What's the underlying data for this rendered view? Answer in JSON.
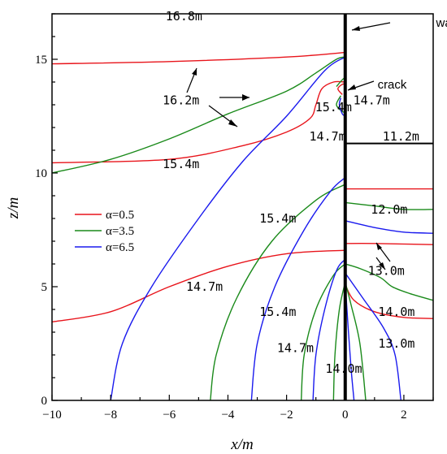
{
  "chart_data": {
    "type": "line",
    "title": "",
    "xlabel": "x/m",
    "ylabel": "z/m",
    "xlim": [
      -10,
      3
    ],
    "ylim": [
      0,
      17
    ],
    "x_ticks": [
      -10,
      -8,
      -6,
      -4,
      -2,
      0,
      2
    ],
    "y_ticks": [
      0,
      5,
      10,
      15
    ],
    "grid": false,
    "legend_position": "middle-left",
    "series": [
      {
        "name": "α=0.5",
        "color": "#e8141b"
      },
      {
        "name": "α=3.5",
        "color": "#1a8a1a"
      },
      {
        "name": "α=6.5",
        "color": "#1a1aee"
      }
    ],
    "contours": [
      {
        "series": 0,
        "points": [
          [
            -10,
            14.8
          ],
          [
            -6,
            14.9
          ],
          [
            -2,
            15.1
          ],
          [
            0,
            15.3
          ]
        ]
      },
      {
        "series": 0,
        "points": [
          [
            -10,
            10.45
          ],
          [
            -6,
            10.6
          ],
          [
            -3.5,
            11.2
          ],
          [
            -2,
            11.8
          ],
          [
            -1.2,
            12.4
          ],
          [
            -1.0,
            13.0
          ],
          [
            -0.8,
            13.7
          ],
          [
            -0.4,
            14.0
          ],
          [
            0,
            14.0
          ]
        ]
      },
      {
        "series": 0,
        "points": [
          [
            -0.1,
            13.45
          ],
          [
            -0.25,
            13.7
          ],
          [
            -0.1,
            13.9
          ],
          [
            0,
            13.9
          ]
        ]
      },
      {
        "series": 0,
        "points": [
          [
            -10,
            3.45
          ],
          [
            -8,
            3.9
          ],
          [
            -6,
            5.0
          ],
          [
            -4,
            5.9
          ],
          [
            -2,
            6.45
          ],
          [
            0,
            6.6
          ]
        ]
      },
      {
        "series": 0,
        "points": [
          [
            0,
            9.3
          ],
          [
            1,
            9.3
          ],
          [
            3,
            9.3
          ]
        ]
      },
      {
        "series": 0,
        "points": [
          [
            0,
            6.9
          ],
          [
            1,
            6.9
          ],
          [
            3,
            6.85
          ]
        ]
      },
      {
        "series": 0,
        "points": [
          [
            0,
            5.1
          ],
          [
            0.3,
            4.4
          ],
          [
            1,
            3.9
          ],
          [
            2,
            3.65
          ],
          [
            3,
            3.6
          ]
        ]
      },
      {
        "series": 1,
        "points": [
          [
            -10,
            10.0
          ],
          [
            -8,
            10.6
          ],
          [
            -6,
            11.5
          ],
          [
            -4,
            12.6
          ],
          [
            -2,
            13.6
          ],
          [
            -1,
            14.4
          ],
          [
            -0.3,
            15.0
          ],
          [
            0,
            15.1
          ]
        ]
      },
      {
        "series": 1,
        "points": [
          [
            -0.3,
            13.8
          ],
          [
            -0.1,
            14.1
          ],
          [
            0,
            14.2
          ]
        ]
      },
      {
        "series": 1,
        "points": [
          [
            -0.15,
            13.4
          ],
          [
            -0.3,
            13.0
          ],
          [
            -0.1,
            12.7
          ],
          [
            0,
            12.7
          ]
        ]
      },
      {
        "series": 1,
        "points": [
          [
            -4.6,
            0
          ],
          [
            -4.4,
            2
          ],
          [
            -3.7,
            4.5
          ],
          [
            -2.5,
            7
          ],
          [
            -1,
            8.8
          ],
          [
            0,
            9.5
          ]
        ]
      },
      {
        "series": 1,
        "points": [
          [
            -1.5,
            0
          ],
          [
            -1.4,
            2
          ],
          [
            -1,
            4
          ],
          [
            -0.4,
            5.5
          ],
          [
            0,
            6
          ]
        ]
      },
      {
        "series": 1,
        "points": [
          [
            -0.4,
            0
          ],
          [
            -0.35,
            2
          ],
          [
            -0.2,
            4
          ],
          [
            0,
            5.2
          ]
        ]
      },
      {
        "series": 1,
        "points": [
          [
            0,
            8.7
          ],
          [
            1,
            8.55
          ],
          [
            2,
            8.4
          ],
          [
            3,
            8.4
          ]
        ]
      },
      {
        "series": 1,
        "points": [
          [
            0,
            6.0
          ],
          [
            0.5,
            5.8
          ],
          [
            1.2,
            5.4
          ],
          [
            1.6,
            5.0
          ],
          [
            2.2,
            4.7
          ],
          [
            3,
            4.4
          ]
        ]
      },
      {
        "series": 1,
        "points": [
          [
            0,
            5.2
          ],
          [
            0.2,
            4.2
          ],
          [
            0.5,
            2.5
          ],
          [
            0.7,
            0
          ]
        ]
      },
      {
        "series": 2,
        "points": [
          [
            -8,
            0
          ],
          [
            -7.6,
            2.5
          ],
          [
            -6.6,
            5
          ],
          [
            -5,
            8
          ],
          [
            -3.5,
            10.5
          ],
          [
            -2,
            12.5
          ],
          [
            -0.7,
            14.5
          ],
          [
            0,
            15.1
          ]
        ]
      },
      {
        "series": 2,
        "points": [
          [
            -0.15,
            13.3
          ],
          [
            -0.2,
            13.0
          ],
          [
            -0.1,
            12.6
          ],
          [
            0,
            12.5
          ]
        ]
      },
      {
        "series": 2,
        "points": [
          [
            -3.2,
            0
          ],
          [
            -3,
            2.5
          ],
          [
            -2.4,
            5
          ],
          [
            -1.4,
            7.5
          ],
          [
            -0.5,
            9.2
          ],
          [
            0,
            9.8
          ]
        ]
      },
      {
        "series": 2,
        "points": [
          [
            -1.1,
            0
          ],
          [
            -1,
            2
          ],
          [
            -0.7,
            4
          ],
          [
            -0.3,
            5.7
          ],
          [
            0,
            6.2
          ]
        ]
      },
      {
        "series": 2,
        "points": [
          [
            0,
            7.9
          ],
          [
            1,
            7.6
          ],
          [
            2,
            7.4
          ],
          [
            3,
            7.35
          ]
        ]
      },
      {
        "series": 2,
        "points": [
          [
            0,
            5.6
          ],
          [
            0.6,
            4.5
          ],
          [
            1.3,
            3.2
          ],
          [
            1.7,
            2
          ],
          [
            1.9,
            0
          ]
        ]
      },
      {
        "series": 2,
        "points": [
          [
            0,
            5.2
          ],
          [
            0.1,
            3.2
          ],
          [
            0.2,
            1.4
          ],
          [
            0.3,
            0
          ]
        ]
      }
    ],
    "wall_lines": [
      {
        "points": [
          [
            0,
            0
          ],
          [
            0,
            17
          ]
        ]
      },
      {
        "points": [
          [
            0,
            11.3
          ],
          [
            3,
            11.3
          ]
        ]
      }
    ],
    "contour_labels": [
      {
        "text": "16.8m",
        "x": -5.5,
        "y": 16.9
      },
      {
        "text": "16.2m",
        "x": -5.6,
        "y": 13.2
      },
      {
        "text": "15.4m",
        "x": -5.6,
        "y": 10.4
      },
      {
        "text": "15.4m",
        "x": -0.4,
        "y": 12.9
      },
      {
        "text": "14.7m",
        "x": 0.9,
        "y": 13.2
      },
      {
        "text": "14.7m",
        "x": -0.6,
        "y": 11.6
      },
      {
        "text": "11.2m",
        "x": 1.9,
        "y": 11.6
      },
      {
        "text": "12.0m",
        "x": 1.5,
        "y": 8.4
      },
      {
        "text": "15.4m",
        "x": -2.3,
        "y": 8.0
      },
      {
        "text": "13.0m",
        "x": 1.4,
        "y": 5.7
      },
      {
        "text": "14.7m",
        "x": -4.8,
        "y": 5.0
      },
      {
        "text": "14.0m",
        "x": 1.75,
        "y": 3.9
      },
      {
        "text": "15.4m",
        "x": -2.3,
        "y": 3.9
      },
      {
        "text": "13.0m",
        "x": 1.75,
        "y": 2.5
      },
      {
        "text": "14.7m",
        "x": -1.7,
        "y": 2.3
      },
      {
        "text": "14.0m",
        "x": -0.05,
        "y": 1.4
      }
    ],
    "annotations": [
      {
        "text": "waterstop",
        "x": 4.0,
        "y": 16.6
      },
      {
        "text": "crack",
        "x": 1.6,
        "y": 13.9
      }
    ]
  }
}
